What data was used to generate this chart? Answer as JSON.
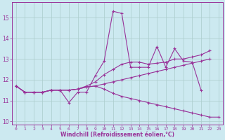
{
  "xlabel": "Windchill (Refroidissement éolien,°C)",
  "xlim": [
    -0.5,
    23.5
  ],
  "ylim": [
    9.85,
    15.75
  ],
  "yticks": [
    10,
    11,
    12,
    13,
    14,
    15
  ],
  "xticks": [
    0,
    1,
    2,
    3,
    4,
    5,
    6,
    7,
    8,
    9,
    10,
    11,
    12,
    13,
    14,
    15,
    16,
    17,
    18,
    19,
    20,
    21,
    22,
    23
  ],
  "background_color": "#cce9f0",
  "grid_color": "#aacccc",
  "line_color": "#993399",
  "lines": [
    [
      11.7,
      11.4,
      11.4,
      11.4,
      11.5,
      11.5,
      10.9,
      11.4,
      11.4,
      12.2,
      12.9,
      15.3,
      15.2,
      12.6,
      12.6,
      12.6,
      13.6,
      12.6,
      13.5,
      12.9,
      12.85,
      11.5,
      null,
      null
    ],
    [
      11.7,
      11.4,
      11.4,
      11.4,
      11.5,
      11.5,
      11.5,
      11.55,
      11.7,
      11.9,
      12.25,
      12.5,
      12.75,
      12.85,
      12.85,
      12.75,
      12.8,
      12.85,
      13.0,
      13.0,
      13.1,
      13.2,
      13.4,
      null
    ],
    [
      11.7,
      11.4,
      11.4,
      11.4,
      11.5,
      11.5,
      11.5,
      11.55,
      11.65,
      11.7,
      11.55,
      11.35,
      11.2,
      11.1,
      11.0,
      10.9,
      10.8,
      10.7,
      10.6,
      10.5,
      10.4,
      10.3,
      10.2,
      10.2
    ],
    [
      11.7,
      11.4,
      11.4,
      11.4,
      11.5,
      11.5,
      11.5,
      11.55,
      11.65,
      11.7,
      11.8,
      11.9,
      12.0,
      12.1,
      12.2,
      12.3,
      12.4,
      12.5,
      12.6,
      12.7,
      12.8,
      12.9,
      13.0,
      null
    ]
  ]
}
